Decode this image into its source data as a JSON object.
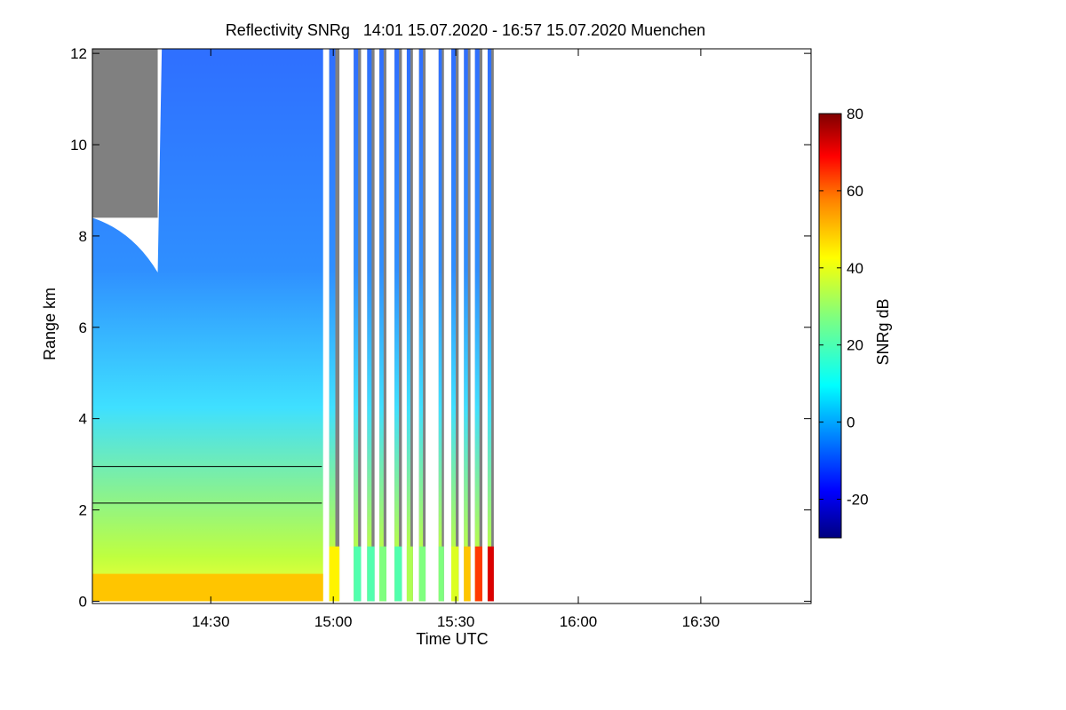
{
  "chart_data": {
    "type": "heatmap",
    "title": "Reflectivity SNRg   14:01 15.07.2020 - 16:57 15.07.2020 Muenchen",
    "xlabel": "Time UTC",
    "ylabel": "Range km",
    "xlim_minutes_utc": [
      841,
      1017
    ],
    "ylim_km": [
      -0.05,
      12.1
    ],
    "x_ticks": [
      {
        "label": "14:30",
        "minute": 870
      },
      {
        "label": "15:00",
        "minute": 900
      },
      {
        "label": "15:30",
        "minute": 930
      },
      {
        "label": "16:00",
        "minute": 960
      },
      {
        "label": "16:30",
        "minute": 990
      }
    ],
    "y_ticks": [
      0,
      2,
      4,
      6,
      8,
      10,
      12
    ],
    "colorbar": {
      "label": "SNRg dB",
      "range": [
        -30,
        80
      ],
      "ticks": [
        -20,
        0,
        20,
        40,
        60,
        80
      ],
      "colormap": "jet",
      "colors": [
        "#00007f",
        "#0000ff",
        "#007fff",
        "#00ffff",
        "#7fff7f",
        "#ffff00",
        "#ff7f00",
        "#ff0000",
        "#7f0000"
      ]
    },
    "no_signal_color": "#808080",
    "scan_blocks": [
      {
        "start_min": 841.0,
        "end_min": 897.5,
        "type": "continuous",
        "max_range_km": 12,
        "max_snr_db": 45
      },
      {
        "start_min": 899.0,
        "end_min": 901.5,
        "type": "scan",
        "max_range_km": 12,
        "max_snr_db": 40
      },
      {
        "start_min": 905.0,
        "end_min": 906.8,
        "type": "scan",
        "max_range_km": 12,
        "max_snr_db": 20
      },
      {
        "start_min": 908.3,
        "end_min": 910.1,
        "type": "scan",
        "max_range_km": 12,
        "max_snr_db": 20
      },
      {
        "start_min": 911.3,
        "end_min": 913.0,
        "type": "scan",
        "max_range_km": 12,
        "max_snr_db": 25
      },
      {
        "start_min": 915.0,
        "end_min": 916.8,
        "type": "scan",
        "max_range_km": 12,
        "max_snr_db": 20
      },
      {
        "start_min": 918.0,
        "end_min": 919.5,
        "type": "scan",
        "max_range_km": 12,
        "max_snr_db": 30
      },
      {
        "start_min": 921.0,
        "end_min": 922.6,
        "type": "scan",
        "max_range_km": 12,
        "max_snr_db": 25
      },
      {
        "start_min": 925.8,
        "end_min": 927.1,
        "type": "scan",
        "max_range_km": 12,
        "max_snr_db": 25
      },
      {
        "start_min": 928.9,
        "end_min": 930.7,
        "type": "scan",
        "max_range_km": 12,
        "max_snr_db": 35
      },
      {
        "start_min": 932.0,
        "end_min": 933.6,
        "type": "scan",
        "max_range_km": 12,
        "max_snr_db": 45
      },
      {
        "start_min": 934.7,
        "end_min": 936.5,
        "type": "scan",
        "max_range_km": 12,
        "max_snr_db": 60
      },
      {
        "start_min": 937.8,
        "end_min": 939.3,
        "type": "scan",
        "max_range_km": 12,
        "max_snr_db": 70
      }
    ]
  }
}
